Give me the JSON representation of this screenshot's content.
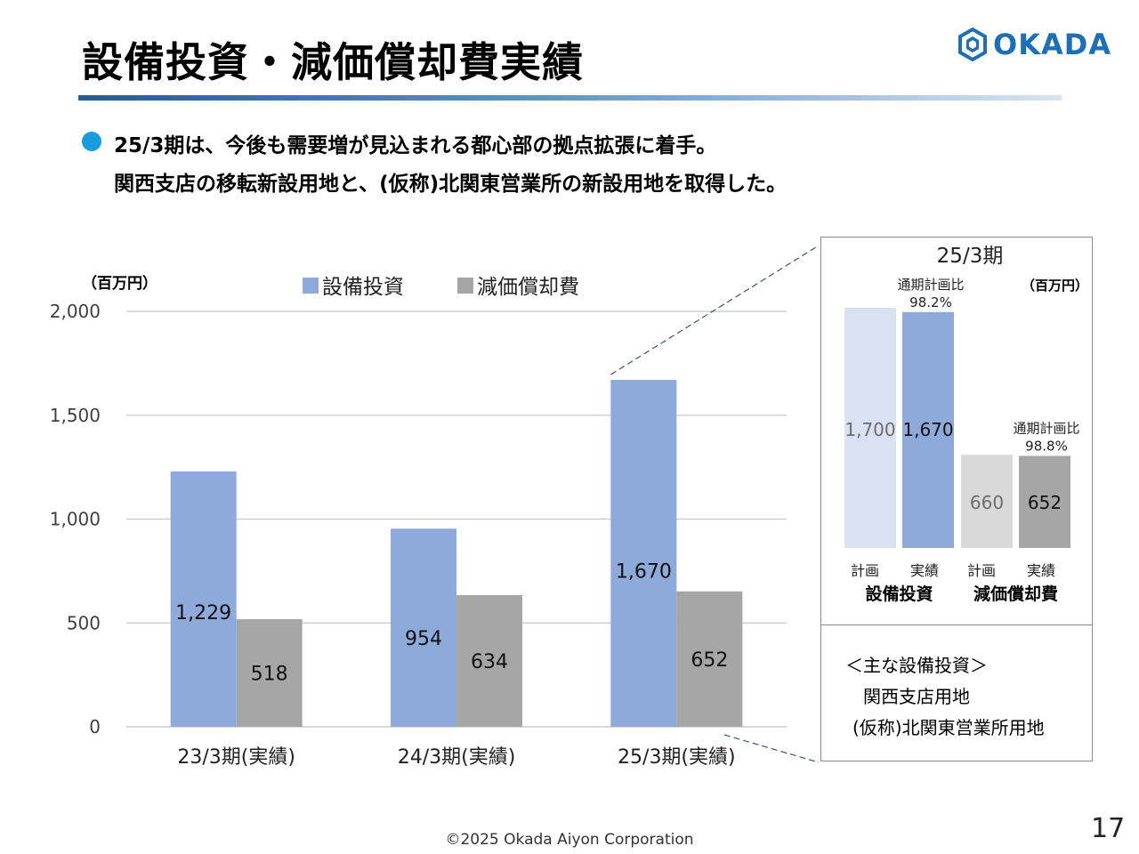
{
  "header": {
    "title": "設備投資・減価償却費実績",
    "logo_text": "OKADA"
  },
  "bullets": [
    "25/3期は、今後も需要増が見込まれる都心部の拠点拡張に着手。",
    "関西支店の移転新設用地と、(仮称)北関東営業所の新設用地を取得した。"
  ],
  "colors": {
    "capex": "#8eaadb",
    "depreciation": "#a6a6a6",
    "capex_plan": "#dae1f3",
    "depreciation_plan": "#d9d9d9",
    "bullet": "#1a9be0",
    "brand": "#1d6fb8"
  },
  "chart_data": [
    {
      "type": "bar",
      "unit_label": "（百万円）",
      "categories": [
        "23/3期(実績)",
        "24/3期(実績)",
        "25/3期(実績)"
      ],
      "series": [
        {
          "name": "設備投資",
          "values": [
            1229,
            954,
            1670
          ]
        },
        {
          "name": "減価償却費",
          "values": [
            518,
            634,
            652
          ]
        }
      ],
      "value_labels": {
        "設備投資": [
          "1,229",
          "954",
          "1,670"
        ],
        "減価償却費": [
          "518",
          "634",
          "652"
        ]
      },
      "yticks": [
        "0",
        "500",
        "1,000",
        "1,500",
        "2,000"
      ],
      "ylim": [
        0,
        2000
      ],
      "legend": "top",
      "grid": true
    },
    {
      "type": "bar",
      "title": "25/3期",
      "unit_label": "（百万円）",
      "groups": [
        {
          "name": "設備投資",
          "bars": [
            {
              "label": "計画",
              "value": 1700,
              "value_label": "1,700"
            },
            {
              "label": "実績",
              "value": 1670,
              "value_label": "1,670"
            }
          ],
          "ratio_label": "通期計画比",
          "ratio": "98.2%"
        },
        {
          "name": "減価償却費",
          "bars": [
            {
              "label": "計画",
              "value": 660,
              "value_label": "660"
            },
            {
              "label": "実績",
              "value": 652,
              "value_label": "652"
            }
          ],
          "ratio_label": "通期計画比",
          "ratio": "98.8%"
        }
      ]
    }
  ],
  "main_investments": {
    "heading": "＜主な設備投資＞",
    "items": [
      "関西支店用地",
      "(仮称)北関東営業所用地"
    ]
  },
  "footer": {
    "copyright": "©2025 Okada Aiyon Corporation",
    "page_number": "17"
  }
}
